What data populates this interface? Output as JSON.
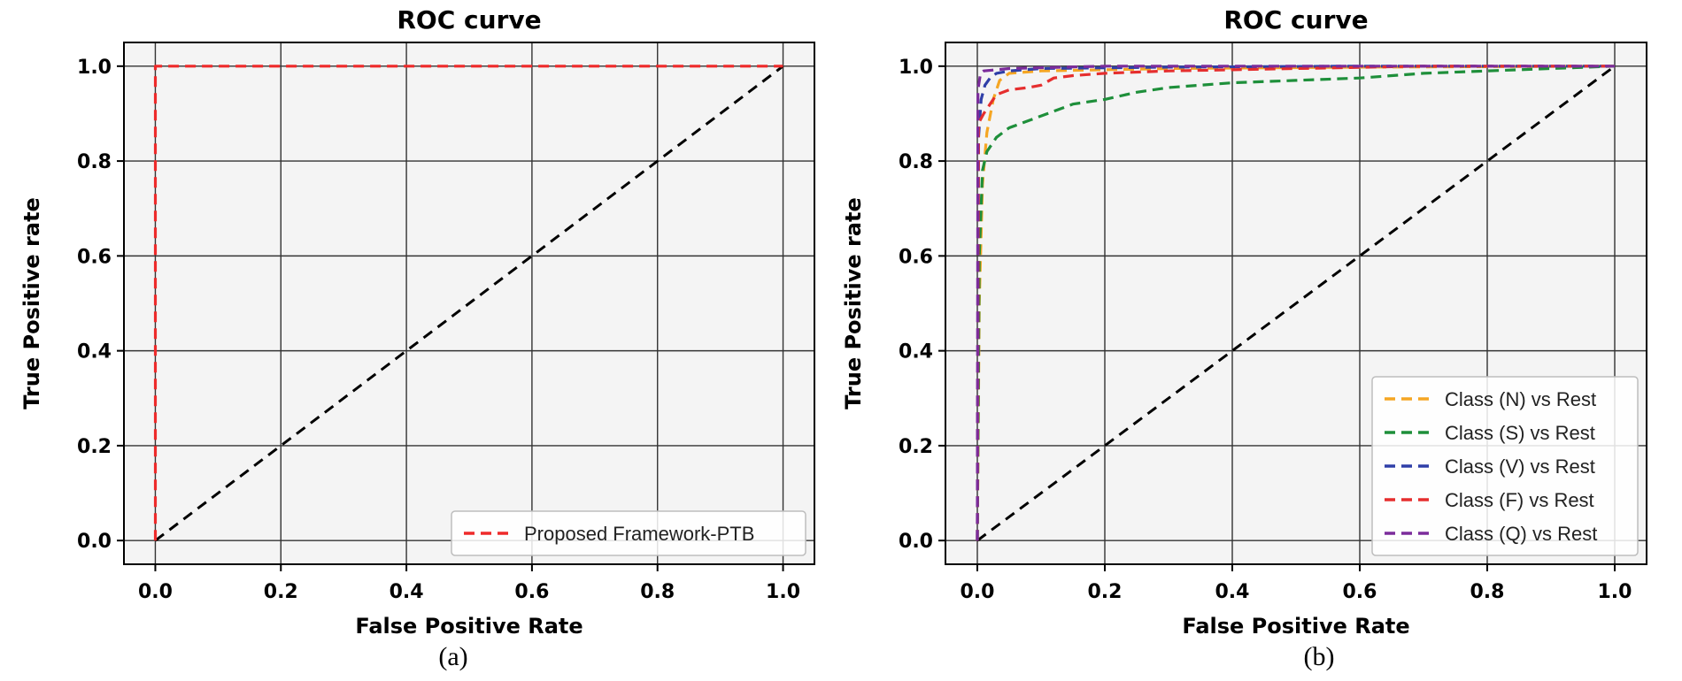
{
  "chart_data": [
    {
      "type": "line",
      "panel_caption": "(a)",
      "title": "ROC curve",
      "xlabel": "False Positive Rate",
      "ylabel": "True Positive rate",
      "xlim": [
        -0.05,
        1.05
      ],
      "ylim": [
        -0.05,
        1.05
      ],
      "x_ticks": [
        "0.0",
        "0.2",
        "0.4",
        "0.6",
        "0.8",
        "1.0"
      ],
      "y_ticks": [
        "0.0",
        "0.2",
        "0.4",
        "0.6",
        "0.8",
        "1.0"
      ],
      "grid": true,
      "legend_position": "lower-right",
      "diagonal": {
        "x": [
          0,
          1
        ],
        "y": [
          0,
          1
        ],
        "color": "#000000"
      },
      "series": [
        {
          "name": "Proposed Framework-PTB",
          "color": "#ee2a2a",
          "x": [
            0.0,
            0.0,
            1.0
          ],
          "y": [
            0.0,
            1.0,
            1.0
          ]
        }
      ]
    },
    {
      "type": "line",
      "panel_caption": "(b)",
      "title": "ROC curve",
      "xlabel": "False Positive Rate",
      "ylabel": "True Positive rate",
      "xlim": [
        -0.05,
        1.05
      ],
      "ylim": [
        -0.05,
        1.05
      ],
      "x_ticks": [
        "0.0",
        "0.2",
        "0.4",
        "0.6",
        "0.8",
        "1.0"
      ],
      "y_ticks": [
        "0.0",
        "0.2",
        "0.4",
        "0.6",
        "0.8",
        "1.0"
      ],
      "grid": true,
      "legend_position": "lower-right",
      "diagonal": {
        "x": [
          0,
          1
        ],
        "y": [
          0,
          1
        ],
        "color": "#000000"
      },
      "series": [
        {
          "name": "Class (N) vs Rest",
          "color": "#f5a623",
          "x": [
            0.0,
            0.003,
            0.008,
            0.015,
            0.025,
            0.035,
            0.05,
            0.1,
            0.3,
            0.6,
            1.0
          ],
          "y": [
            0.0,
            0.5,
            0.75,
            0.86,
            0.93,
            0.97,
            0.985,
            0.99,
            0.995,
            0.998,
            1.0
          ]
        },
        {
          "name": "Class (S) vs Rest",
          "color": "#1e8f3a",
          "x": [
            0.0,
            0.003,
            0.008,
            0.015,
            0.03,
            0.05,
            0.08,
            0.12,
            0.15,
            0.2,
            0.25,
            0.3,
            0.35,
            0.4,
            0.5,
            0.6,
            0.7,
            0.8,
            0.9,
            1.0
          ],
          "y": [
            0.0,
            0.6,
            0.78,
            0.82,
            0.85,
            0.87,
            0.885,
            0.905,
            0.92,
            0.93,
            0.945,
            0.955,
            0.96,
            0.965,
            0.97,
            0.975,
            0.985,
            0.99,
            0.995,
            1.0
          ]
        },
        {
          "name": "Class (V) vs Rest",
          "color": "#2f3fa8",
          "x": [
            0.0,
            0.002,
            0.006,
            0.012,
            0.02,
            0.03,
            0.05,
            0.1,
            0.3,
            0.6,
            1.0
          ],
          "y": [
            0.0,
            0.85,
            0.93,
            0.96,
            0.975,
            0.985,
            0.99,
            0.995,
            0.998,
            1.0,
            1.0
          ]
        },
        {
          "name": "Class (F) vs Rest",
          "color": "#e52e2e",
          "x": [
            0.0,
            0.002,
            0.01,
            0.02,
            0.03,
            0.05,
            0.08,
            0.1,
            0.12,
            0.15,
            0.2,
            0.3,
            0.5,
            0.7,
            1.0
          ],
          "y": [
            0.0,
            0.88,
            0.9,
            0.92,
            0.94,
            0.95,
            0.955,
            0.96,
            0.975,
            0.98,
            0.985,
            0.99,
            0.995,
            1.0,
            1.0
          ]
        },
        {
          "name": "Class (Q) vs Rest",
          "color": "#7b2c9b",
          "x": [
            0.0,
            0.001,
            0.005,
            0.01,
            0.05,
            0.2,
            1.0
          ],
          "y": [
            0.0,
            0.95,
            0.985,
            0.99,
            0.995,
            1.0,
            1.0
          ]
        }
      ]
    }
  ]
}
